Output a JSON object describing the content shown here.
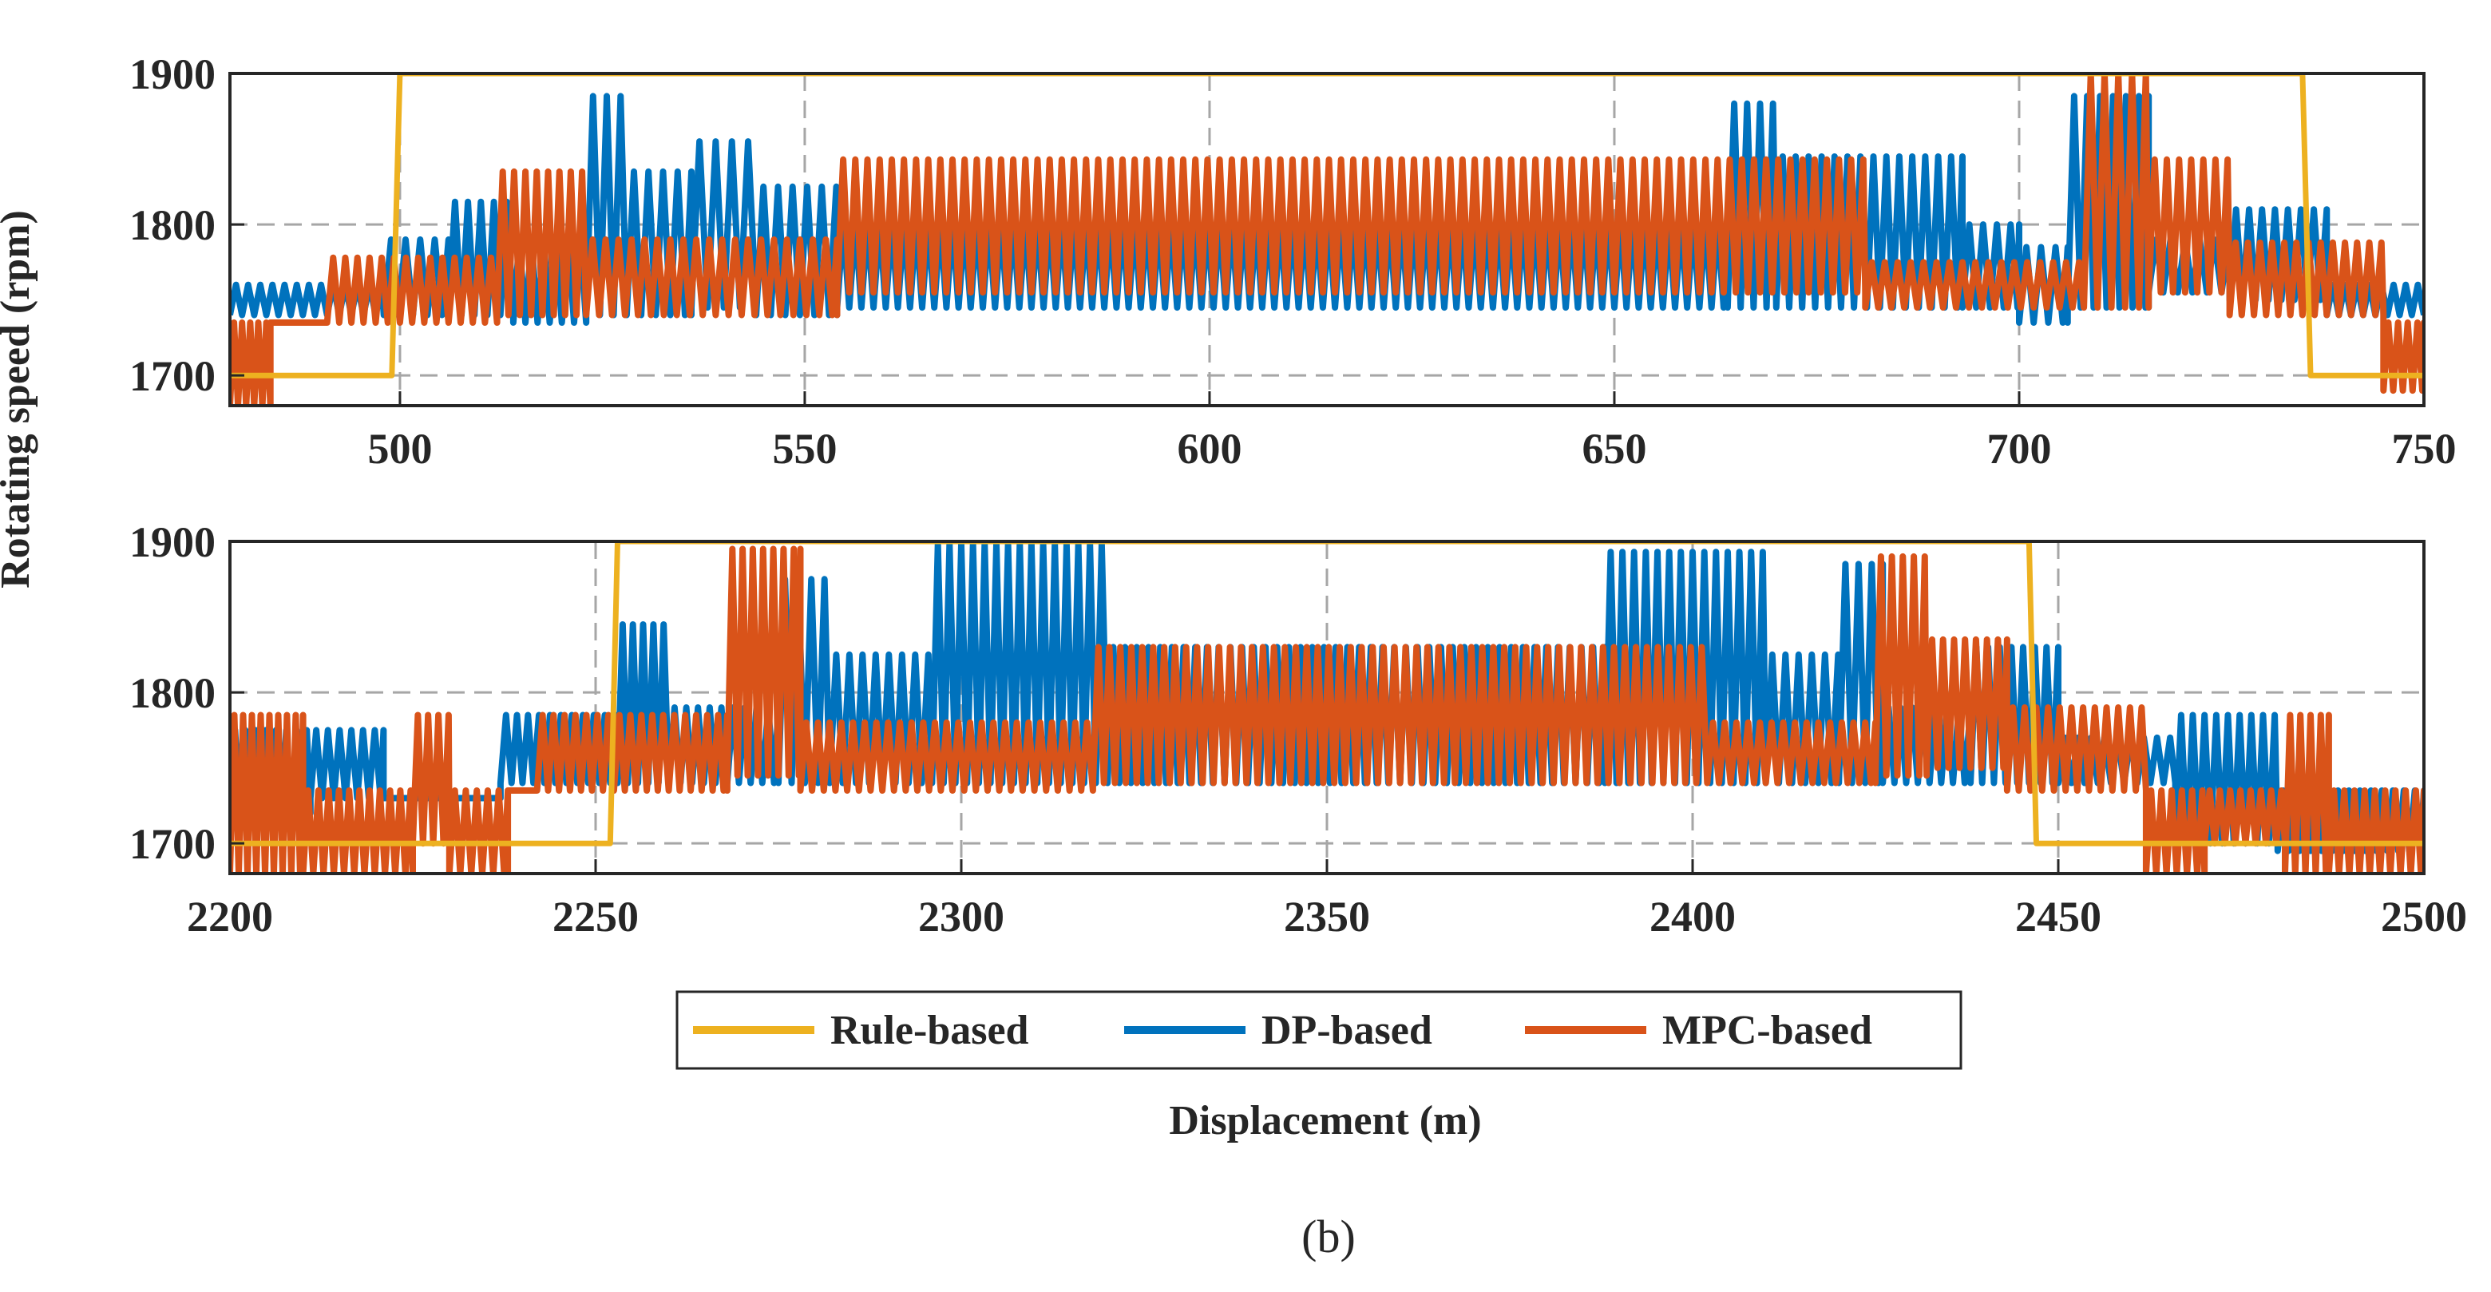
{
  "figure": {
    "caption": "(b)",
    "ylabel": "Rotating speed (rpm)",
    "xlabel": "Displacement (m)"
  },
  "legend": [
    {
      "label": "Rule-based",
      "color": "#EDB120"
    },
    {
      "label": "DP-based",
      "color": "#0072BD"
    },
    {
      "label": "MPC-based",
      "color": "#D95319"
    }
  ],
  "chart_data": [
    {
      "type": "line",
      "title": "",
      "xlabel": "",
      "ylabel": "Rotating speed (rpm)",
      "xlim": [
        479,
        750
      ],
      "ylim": [
        1680,
        1900
      ],
      "xticks": [
        500,
        550,
        600,
        650,
        700,
        750
      ],
      "yticks": [
        1700,
        1800,
        1900
      ],
      "grid": true,
      "series": [
        {
          "name": "Rule-based",
          "color": "#EDB120",
          "x": [
            479,
            499,
            500,
            735,
            736,
            750
          ],
          "y": [
            1700,
            1700,
            1900,
            1900,
            1700,
            1700
          ]
        },
        {
          "name": "DP-based",
          "color": "#0072BD",
          "oscillation": [
            [
              479,
              498,
              1740,
              1760,
              1.5
            ],
            [
              498,
              506,
              1740,
              1790,
              1.8
            ],
            [
              506,
              514,
              1740,
              1815,
              1.6
            ],
            [
              514,
              523,
              1735,
              1790,
              1.5
            ],
            [
              523,
              528,
              1740,
              1885,
              1.7
            ],
            [
              528,
              536,
              1740,
              1835,
              1.8
            ],
            [
              536,
              544,
              1745,
              1855,
              2.0
            ],
            [
              544,
              554,
              1740,
              1825,
              1.8
            ],
            [
              554,
              664,
              1745,
              1800,
              1.5
            ],
            [
              664,
              670,
              1745,
              1880,
              1.6
            ],
            [
              670,
              693,
              1745,
              1845,
              1.6
            ],
            [
              693,
              700,
              1745,
              1800,
              1.7
            ],
            [
              700,
              706,
              1735,
              1785,
              1.8
            ],
            [
              706,
              716,
              1745,
              1885,
              1.6
            ],
            [
              716,
              726,
              1755,
              1790,
              1.8
            ],
            [
              726,
              738,
              1750,
              1810,
              1.6
            ],
            [
              738,
              750,
              1740,
              1760,
              1.5
            ]
          ]
        },
        {
          "name": "MPC-based",
          "color": "#D95319",
          "oscillation": [
            [
              479,
              484,
              1680,
              1735,
              1.0
            ],
            [
              484,
              491,
              1735,
              1735,
              1.0
            ],
            [
              491,
              512,
              1735,
              1778,
              1.5
            ],
            [
              512,
              523,
              1740,
              1835,
              1.4
            ],
            [
              523,
              554,
              1740,
              1790,
              1.6
            ],
            [
              554,
              681,
              1755,
              1843,
              1.5
            ],
            [
              681,
              708,
              1745,
              1775,
              1.6
            ],
            [
              708,
              716,
              1745,
              1900,
              1.7
            ],
            [
              716,
              726,
              1755,
              1843,
              1.5
            ],
            [
              726,
              745,
              1740,
              1788,
              1.5
            ],
            [
              745,
              750,
              1690,
              1735,
              1.2
            ]
          ]
        }
      ]
    },
    {
      "type": "line",
      "title": "",
      "xlabel": "Displacement (m)",
      "ylabel": "Rotating speed (rpm)",
      "xlim": [
        2200,
        2500
      ],
      "ylim": [
        1680,
        1900
      ],
      "xticks": [
        2200,
        2250,
        2300,
        2350,
        2400,
        2450,
        2500
      ],
      "yticks": [
        1700,
        1800,
        1900
      ],
      "grid": true,
      "series": [
        {
          "name": "Rule-based",
          "color": "#EDB120",
          "x": [
            2200,
            2252,
            2253,
            2446,
            2447,
            2500
          ],
          "y": [
            1700,
            1700,
            1900,
            1900,
            1700,
            1700
          ]
        },
        {
          "name": "DP-based",
          "color": "#0072BD",
          "oscillation": [
            [
              2200,
              2211,
              1720,
              1775,
              1.4
            ],
            [
              2211,
              2221,
              1730,
              1775,
              1.6
            ],
            [
              2221,
              2237,
              1730,
              1730,
              1.0
            ],
            [
              2237,
              2253,
              1740,
              1785,
              1.5
            ],
            [
              2253,
              2260,
              1740,
              1845,
              1.4
            ],
            [
              2260,
              2275,
              1740,
              1790,
              1.6
            ],
            [
              2275,
              2282,
              1740,
              1875,
              1.8
            ],
            [
              2282,
              2296,
              1740,
              1825,
              1.8
            ],
            [
              2296,
              2320,
              1740,
              1898,
              1.6
            ],
            [
              2320,
              2388,
              1740,
              1830,
              1.6
            ],
            [
              2388,
              2410,
              1740,
              1893,
              1.6
            ],
            [
              2410,
              2420,
              1740,
              1825,
              1.8
            ],
            [
              2420,
              2426,
              1740,
              1885,
              1.8
            ],
            [
              2426,
              2438,
              1740,
              1790,
              1.6
            ],
            [
              2438,
              2450,
              1740,
              1830,
              1.6
            ],
            [
              2450,
              2466,
              1740,
              1770,
              1.8
            ],
            [
              2466,
              2480,
              1700,
              1785,
              1.6
            ],
            [
              2480,
              2500,
              1695,
              1735,
              1.5
            ]
          ]
        },
        {
          "name": "MPC-based",
          "color": "#D95319",
          "oscillation": [
            [
              2200,
              2210,
              1680,
              1785,
              1.2
            ],
            [
              2210,
              2225,
              1680,
              1735,
              1.4
            ],
            [
              2225,
              2230,
              1700,
              1785,
              1.4
            ],
            [
              2230,
              2238,
              1680,
              1735,
              1.5
            ],
            [
              2238,
              2242,
              1735,
              1735,
              1.0
            ],
            [
              2242,
              2268,
              1735,
              1785,
              1.5
            ],
            [
              2268,
              2278,
              1745,
              1895,
              1.4
            ],
            [
              2278,
              2318,
              1735,
              1780,
              1.6
            ],
            [
              2318,
              2402,
              1740,
              1830,
              1.5
            ],
            [
              2402,
              2425,
              1740,
              1780,
              1.6
            ],
            [
              2425,
              2432,
              1745,
              1890,
              1.5
            ],
            [
              2432,
              2443,
              1750,
              1835,
              1.5
            ],
            [
              2443,
              2462,
              1735,
              1790,
              1.6
            ],
            [
              2462,
              2470,
              1680,
              1735,
              1.4
            ],
            [
              2470,
              2481,
              1700,
              1735,
              1.4
            ],
            [
              2481,
              2487,
              1680,
              1785,
              1.4
            ],
            [
              2487,
              2500,
              1680,
              1735,
              1.4
            ]
          ]
        }
      ]
    }
  ]
}
